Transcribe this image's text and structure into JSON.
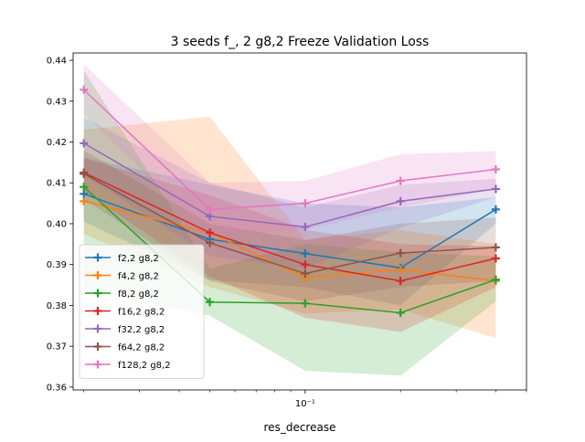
{
  "chart_data": {
    "type": "line",
    "title": "3 seeds f_, 2 g8,2 Freeze Validation Loss",
    "xlabel": "res_decrease",
    "ylabel": "",
    "x_scale": "log",
    "xlim": [
      0.0185,
      0.5
    ],
    "ylim": [
      0.3593,
      0.4418
    ],
    "x": [
      0.02,
      0.05,
      0.1,
      0.2,
      0.4
    ],
    "x_major_ticks": [
      {
        "value": 0.1,
        "label": "10⁻¹"
      }
    ],
    "y_ticks": [
      0.36,
      0.37,
      0.38,
      0.39,
      0.4,
      0.41,
      0.42,
      0.43,
      0.44
    ],
    "y_tick_labels": [
      "0.36",
      "0.37",
      "0.38",
      "0.39",
      "0.40",
      "0.41",
      "0.42",
      "0.43",
      "0.44"
    ],
    "grid": false,
    "legend_position": "lower-left",
    "series": [
      {
        "name": "f2,2 g8,2",
        "color": "#1f77b4",
        "values": [
          0.4073,
          0.3962,
          0.3927,
          0.3892,
          0.4035
        ],
        "lower": [
          0.4005,
          0.3862,
          0.3845,
          0.38,
          0.4
        ],
        "upper": [
          0.4162,
          0.4095,
          0.405,
          0.404,
          0.4065
        ]
      },
      {
        "name": "f4,2 g8,2",
        "color": "#ff7f0e",
        "values": [
          0.4055,
          0.3978,
          0.3868,
          0.3888,
          0.386
        ],
        "lower": [
          0.3975,
          0.3845,
          0.378,
          0.379,
          0.372
        ],
        "upper": [
          0.423,
          0.4262,
          0.396,
          0.3985,
          0.395
        ]
      },
      {
        "name": "f8,2 g8,2",
        "color": "#2ca02c",
        "values": [
          0.409,
          0.3808,
          0.3805,
          0.3782,
          0.3863
        ],
        "lower": [
          0.384,
          0.3775,
          0.364,
          0.3628,
          0.381
        ],
        "upper": [
          0.4375,
          0.389,
          0.395,
          0.393,
          0.392
        ]
      },
      {
        "name": "f16,2 g8,2",
        "color": "#d62728",
        "values": [
          0.4125,
          0.3978,
          0.39,
          0.386,
          0.3915
        ],
        "lower": [
          0.408,
          0.387,
          0.377,
          0.3735,
          0.3845
        ],
        "upper": [
          0.416,
          0.407,
          0.3985,
          0.395,
          0.3945
        ]
      },
      {
        "name": "f32,2 g8,2",
        "color": "#9467bd",
        "values": [
          0.4197,
          0.4018,
          0.3992,
          0.4055,
          0.4085
        ],
        "lower": [
          0.412,
          0.392,
          0.389,
          0.399,
          0.4065
        ],
        "upper": [
          0.426,
          0.41,
          0.404,
          0.4095,
          0.411
        ]
      },
      {
        "name": "f64,2 g8,2",
        "color": "#8c564b",
        "values": [
          0.4122,
          0.3953,
          0.3878,
          0.3928,
          0.3942
        ],
        "lower": [
          0.406,
          0.386,
          0.381,
          0.3845,
          0.386
        ],
        "upper": [
          0.418,
          0.4,
          0.396,
          0.4,
          0.4015
        ]
      },
      {
        "name": "f128,2 g8,2",
        "color": "#e377c2",
        "values": [
          0.4328,
          0.4035,
          0.405,
          0.4105,
          0.4133
        ],
        "lower": [
          0.4268,
          0.397,
          0.3985,
          0.404,
          0.4085
        ],
        "upper": [
          0.439,
          0.41,
          0.4105,
          0.417,
          0.4178
        ]
      }
    ]
  }
}
